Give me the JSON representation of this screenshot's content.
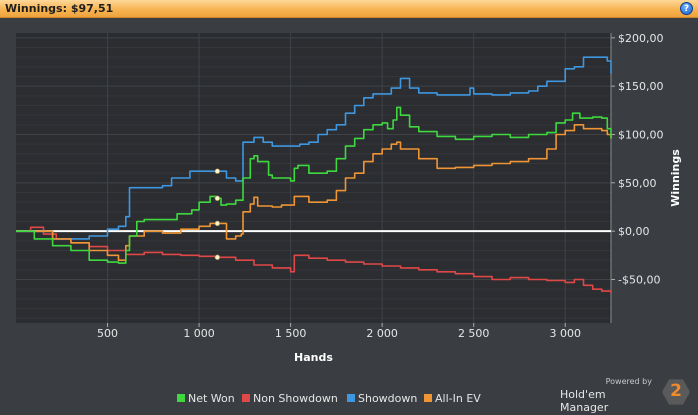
{
  "window": {
    "title": "Winnings: $97,51"
  },
  "branding": {
    "powered_by": "Powered by",
    "product": "Hold'em Manager",
    "logo_text": "2"
  },
  "chart_data": {
    "type": "line",
    "xlabel": "Hands",
    "ylabel": "Winnings",
    "xlim": [
      0,
      3250
    ],
    "ylim": [
      -95,
      205
    ],
    "x_ticks": [
      500,
      1000,
      1500,
      2000,
      2500,
      3000
    ],
    "x_tick_labels": [
      "500",
      "1 000",
      "1 500",
      "2 000",
      "2 500",
      "3 000"
    ],
    "y_ticks": [
      -50,
      0,
      50,
      100,
      150,
      200
    ],
    "y_tick_labels": [
      "-$50,00",
      "$0,00",
      "$50,00",
      "$100,00",
      "$150,00",
      "$200,00"
    ],
    "zero_line": true,
    "grid": true,
    "legend_position": "bottom",
    "markers_x": 1100,
    "series": [
      {
        "name": "Net Won",
        "color": "#3fd93f",
        "points": [
          [
            0,
            0
          ],
          [
            100,
            -8
          ],
          [
            200,
            -15
          ],
          [
            300,
            -20
          ],
          [
            400,
            -30
          ],
          [
            500,
            -32
          ],
          [
            560,
            -33
          ],
          [
            600,
            -20
          ],
          [
            620,
            -5
          ],
          [
            660,
            10
          ],
          [
            700,
            12
          ],
          [
            800,
            12
          ],
          [
            880,
            18
          ],
          [
            960,
            22
          ],
          [
            1000,
            30
          ],
          [
            1060,
            36
          ],
          [
            1100,
            34
          ],
          [
            1120,
            27
          ],
          [
            1150,
            28
          ],
          [
            1200,
            32
          ],
          [
            1230,
            32
          ],
          [
            1240,
            55
          ],
          [
            1280,
            75
          ],
          [
            1300,
            78
          ],
          [
            1320,
            72
          ],
          [
            1380,
            58
          ],
          [
            1400,
            55
          ],
          [
            1500,
            52
          ],
          [
            1520,
            65
          ],
          [
            1540,
            68
          ],
          [
            1600,
            60
          ],
          [
            1700,
            62
          ],
          [
            1750,
            75
          ],
          [
            1800,
            88
          ],
          [
            1850,
            96
          ],
          [
            1900,
            105
          ],
          [
            1950,
            110
          ],
          [
            2000,
            112
          ],
          [
            2030,
            106
          ],
          [
            2060,
            115
          ],
          [
            2080,
            128
          ],
          [
            2100,
            120
          ],
          [
            2150,
            108
          ],
          [
            2200,
            103
          ],
          [
            2300,
            98
          ],
          [
            2400,
            95
          ],
          [
            2500,
            98
          ],
          [
            2600,
            100
          ],
          [
            2700,
            97
          ],
          [
            2800,
            100
          ],
          [
            2900,
            102
          ],
          [
            2950,
            112
          ],
          [
            3000,
            115
          ],
          [
            3040,
            122
          ],
          [
            3080,
            117
          ],
          [
            3150,
            118
          ],
          [
            3200,
            117
          ],
          [
            3230,
            106
          ],
          [
            3250,
            96
          ]
        ]
      },
      {
        "name": "Non Showdown",
        "color": "#e04848",
        "points": [
          [
            0,
            0
          ],
          [
            80,
            4
          ],
          [
            150,
            -3
          ],
          [
            220,
            -8
          ],
          [
            300,
            -12
          ],
          [
            400,
            -16
          ],
          [
            500,
            -20
          ],
          [
            600,
            -24
          ],
          [
            700,
            -22
          ],
          [
            800,
            -24
          ],
          [
            900,
            -25
          ],
          [
            1000,
            -26
          ],
          [
            1100,
            -27
          ],
          [
            1200,
            -30
          ],
          [
            1300,
            -35
          ],
          [
            1400,
            -38
          ],
          [
            1500,
            -42
          ],
          [
            1520,
            -25
          ],
          [
            1600,
            -28
          ],
          [
            1700,
            -30
          ],
          [
            1800,
            -32
          ],
          [
            1900,
            -34
          ],
          [
            2000,
            -36
          ],
          [
            2100,
            -38
          ],
          [
            2200,
            -40
          ],
          [
            2300,
            -42
          ],
          [
            2400,
            -44
          ],
          [
            2500,
            -47
          ],
          [
            2600,
            -50
          ],
          [
            2700,
            -48
          ],
          [
            2800,
            -50
          ],
          [
            2900,
            -51
          ],
          [
            3000,
            -53
          ],
          [
            3050,
            -50
          ],
          [
            3100,
            -56
          ],
          [
            3150,
            -60
          ],
          [
            3200,
            -62
          ],
          [
            3250,
            -64
          ]
        ]
      },
      {
        "name": "Showdown",
        "color": "#3f97e0",
        "points": [
          [
            0,
            0
          ],
          [
            200,
            -8
          ],
          [
            400,
            -5
          ],
          [
            500,
            2
          ],
          [
            560,
            5
          ],
          [
            600,
            15
          ],
          [
            620,
            45
          ],
          [
            700,
            45
          ],
          [
            800,
            47
          ],
          [
            850,
            55
          ],
          [
            900,
            55
          ],
          [
            950,
            62
          ],
          [
            1000,
            62
          ],
          [
            1050,
            62
          ],
          [
            1100,
            62
          ],
          [
            1150,
            55
          ],
          [
            1200,
            52
          ],
          [
            1240,
            92
          ],
          [
            1300,
            97
          ],
          [
            1350,
            92
          ],
          [
            1400,
            88
          ],
          [
            1450,
            88
          ],
          [
            1500,
            88
          ],
          [
            1550,
            90
          ],
          [
            1600,
            92
          ],
          [
            1650,
            100
          ],
          [
            1700,
            105
          ],
          [
            1750,
            110
          ],
          [
            1800,
            122
          ],
          [
            1850,
            130
          ],
          [
            1900,
            138
          ],
          [
            1950,
            142
          ],
          [
            2000,
            142
          ],
          [
            2050,
            148
          ],
          [
            2100,
            158
          ],
          [
            2150,
            148
          ],
          [
            2200,
            143
          ],
          [
            2300,
            141
          ],
          [
            2400,
            141
          ],
          [
            2480,
            148
          ],
          [
            2500,
            142
          ],
          [
            2600,
            141
          ],
          [
            2700,
            143
          ],
          [
            2800,
            145
          ],
          [
            2850,
            150
          ],
          [
            2900,
            155
          ],
          [
            3000,
            168
          ],
          [
            3050,
            170
          ],
          [
            3100,
            180
          ],
          [
            3200,
            180
          ],
          [
            3230,
            176
          ],
          [
            3250,
            163
          ]
        ]
      },
      {
        "name": "All-In EV",
        "color": "#f09535",
        "points": [
          [
            0,
            0
          ],
          [
            100,
            0
          ],
          [
            200,
            -8
          ],
          [
            300,
            -12
          ],
          [
            400,
            -20
          ],
          [
            500,
            -25
          ],
          [
            560,
            -30
          ],
          [
            600,
            -15
          ],
          [
            620,
            -5
          ],
          [
            700,
            0
          ],
          [
            800,
            -2
          ],
          [
            900,
            2
          ],
          [
            1000,
            5
          ],
          [
            1060,
            8
          ],
          [
            1100,
            8
          ],
          [
            1150,
            -8
          ],
          [
            1200,
            -5
          ],
          [
            1230,
            -3
          ],
          [
            1240,
            20
          ],
          [
            1280,
            28
          ],
          [
            1300,
            35
          ],
          [
            1320,
            26
          ],
          [
            1400,
            25
          ],
          [
            1450,
            27
          ],
          [
            1500,
            27
          ],
          [
            1520,
            36
          ],
          [
            1540,
            36
          ],
          [
            1600,
            30
          ],
          [
            1700,
            32
          ],
          [
            1750,
            42
          ],
          [
            1800,
            55
          ],
          [
            1850,
            60
          ],
          [
            1900,
            72
          ],
          [
            1950,
            80
          ],
          [
            2000,
            85
          ],
          [
            2050,
            90
          ],
          [
            2080,
            92
          ],
          [
            2100,
            85
          ],
          [
            2200,
            75
          ],
          [
            2300,
            65
          ],
          [
            2400,
            66
          ],
          [
            2500,
            68
          ],
          [
            2600,
            70
          ],
          [
            2700,
            72
          ],
          [
            2800,
            75
          ],
          [
            2900,
            85
          ],
          [
            2950,
            100
          ],
          [
            3000,
            104
          ],
          [
            3050,
            110
          ],
          [
            3100,
            106
          ],
          [
            3200,
            104
          ],
          [
            3230,
            100
          ],
          [
            3250,
            96
          ]
        ]
      }
    ]
  }
}
